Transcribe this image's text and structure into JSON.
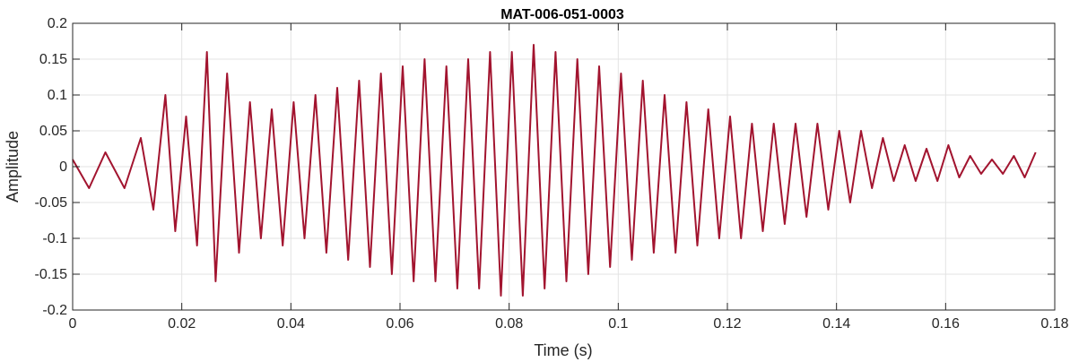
{
  "chart_data": {
    "type": "line",
    "title": "MAT-006-051-0003",
    "xlabel": "Time (s)",
    "ylabel": "Amplitude",
    "xlim": [
      0,
      0.18
    ],
    "ylim": [
      -0.2,
      0.2
    ],
    "x_ticks": [
      0,
      0.02,
      0.04,
      0.06,
      0.08,
      0.1,
      0.12,
      0.14,
      0.16,
      0.18
    ],
    "x_tick_labels": [
      "0",
      "0.02",
      "0.04",
      "0.06",
      "0.08",
      "0.1",
      "0.12",
      "0.14",
      "0.16",
      "0.18"
    ],
    "y_ticks": [
      -0.2,
      -0.15,
      -0.1,
      -0.05,
      0,
      0.05,
      0.1,
      0.15,
      0.2
    ],
    "y_tick_labels": [
      "-0.2",
      "-0.15",
      "-0.1",
      "-0.05",
      "0",
      "0.05",
      "0.1",
      "0.15",
      "0.2"
    ],
    "grid": true,
    "line_color": "#A2142F",
    "series": [
      {
        "x": [
          0,
          0.003,
          0.006,
          0.0095,
          0.0125,
          0.0148,
          0.017,
          0.0188,
          0.0208,
          0.0228,
          0.0246,
          0.0262,
          0.0283,
          0.0305,
          0.0325,
          0.0345,
          0.0365,
          0.0385,
          0.0405,
          0.0425,
          0.0445,
          0.0465,
          0.0485,
          0.0505,
          0.0525,
          0.0545,
          0.0565,
          0.0585,
          0.0605,
          0.0625,
          0.0645,
          0.0665,
          0.0685,
          0.0705,
          0.0725,
          0.0745,
          0.0765,
          0.0785,
          0.0805,
          0.0825,
          0.0845,
          0.0865,
          0.0885,
          0.0905,
          0.0925,
          0.0945,
          0.0965,
          0.0985,
          0.1005,
          0.1025,
          0.1045,
          0.1065,
          0.1085,
          0.1105,
          0.1125,
          0.1145,
          0.1165,
          0.1185,
          0.1205,
          0.1225,
          0.1245,
          0.1265,
          0.1285,
          0.1305,
          0.1325,
          0.1345,
          0.1365,
          0.1385,
          0.1405,
          0.1425,
          0.1445,
          0.1465,
          0.1485,
          0.1505,
          0.1525,
          0.1545,
          0.1565,
          0.1585,
          0.1605,
          0.1625,
          0.1645,
          0.1665,
          0.1685,
          0.1705,
          0.1725,
          0.1745,
          0.1765
        ],
        "y": [
          0.01,
          -0.03,
          0.02,
          -0.03,
          0.04,
          -0.06,
          0.1,
          -0.09,
          0.07,
          -0.11,
          0.16,
          -0.16,
          0.13,
          -0.12,
          0.09,
          -0.1,
          0.08,
          -0.11,
          0.09,
          -0.1,
          0.1,
          -0.12,
          0.11,
          -0.13,
          0.12,
          -0.14,
          0.13,
          -0.15,
          0.14,
          -0.16,
          0.15,
          -0.16,
          0.14,
          -0.17,
          0.15,
          -0.17,
          0.16,
          -0.18,
          0.16,
          -0.18,
          0.17,
          -0.17,
          0.16,
          -0.16,
          0.15,
          -0.15,
          0.14,
          -0.14,
          0.13,
          -0.13,
          0.12,
          -0.12,
          0.1,
          -0.12,
          0.09,
          -0.11,
          0.08,
          -0.1,
          0.07,
          -0.1,
          0.06,
          -0.09,
          0.06,
          -0.08,
          0.06,
          -0.07,
          0.06,
          -0.06,
          0.05,
          -0.05,
          0.05,
          -0.03,
          0.04,
          -0.02,
          0.03,
          -0.02,
          0.025,
          -0.02,
          0.03,
          -0.015,
          0.015,
          -0.01,
          0.01,
          -0.01,
          0.015,
          -0.015,
          0.02
        ]
      }
    ]
  }
}
